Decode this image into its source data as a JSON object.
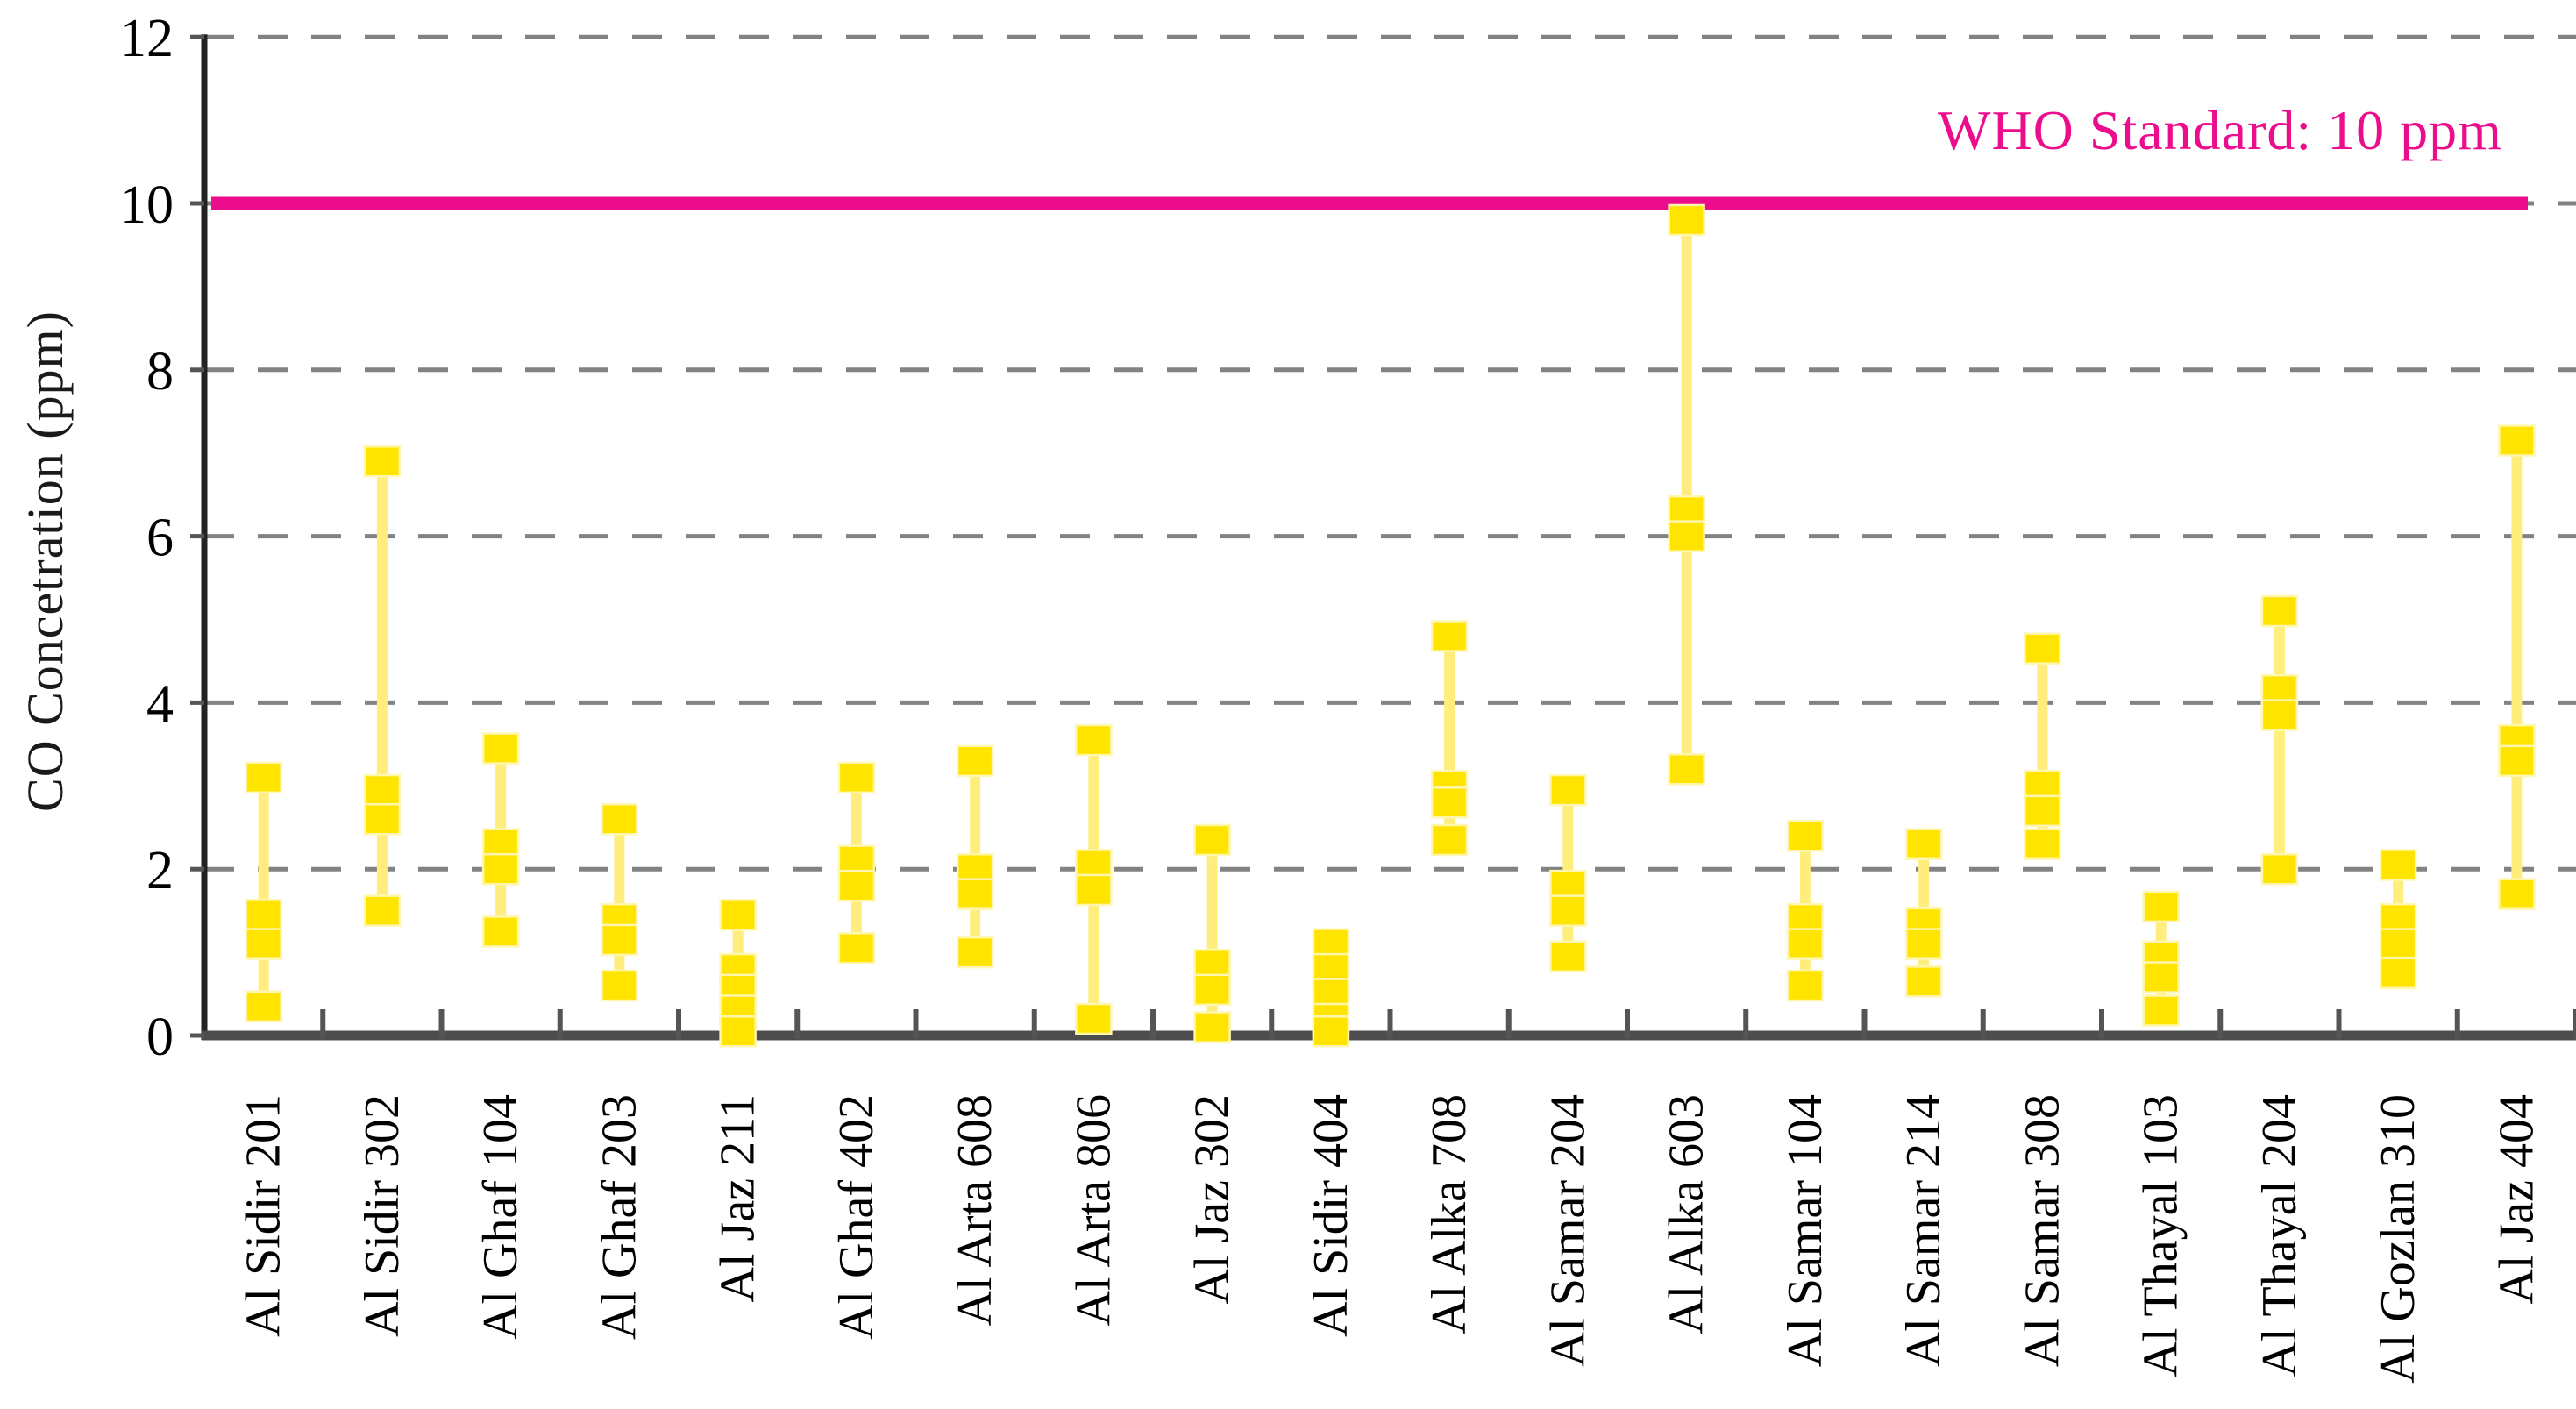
{
  "chart_data": {
    "type": "scatter",
    "title": "",
    "xlabel": "",
    "ylabel": "CO Concetration (ppm)",
    "ylim": [
      0,
      12
    ],
    "yticks": [
      0,
      2,
      4,
      6,
      8,
      10,
      12
    ],
    "grid": "horizontal-dashed",
    "legend_position": "none",
    "marker_shape": "square",
    "who_line": {
      "value": 10,
      "label": "WHO Standard: 10 ppm"
    },
    "categories": [
      "Al Sidir 201",
      "Al Sidir 302",
      "Al Ghaf 104",
      "Al Ghaf 203",
      "Al Jaz 211",
      "Al Ghaf 402",
      "Al Arta 608",
      "Al Arta 806",
      "Al Jaz 302",
      "Al Sidir 404",
      "Al Alka 708",
      "Al Samar 204",
      "Al Alka 603",
      "Al Samar 104",
      "Al Samar 214",
      "Al Samar 308",
      "Al Thayal 103",
      "Al Thayal 204",
      "Al Gozlan 310",
      "Al Jaz 404"
    ],
    "series": [
      {
        "name": "Al Sidir 201",
        "values": [
          3.1,
          1.45,
          1.1,
          0.35
        ]
      },
      {
        "name": "Al Sidir 302",
        "values": [
          6.9,
          2.95,
          2.6,
          1.5
        ]
      },
      {
        "name": "Al Ghaf 104",
        "values": [
          3.45,
          2.3,
          2.0,
          1.25
        ]
      },
      {
        "name": "Al Ghaf 203",
        "values": [
          2.6,
          1.4,
          1.15,
          0.6
        ]
      },
      {
        "name": "Al Jaz 211",
        "values": [
          1.45,
          0.8,
          0.55,
          0.3,
          0.05
        ]
      },
      {
        "name": "Al Ghaf 402",
        "values": [
          3.1,
          2.1,
          1.8,
          1.05
        ]
      },
      {
        "name": "Al Arta 608",
        "values": [
          3.3,
          2.0,
          1.7,
          1.0
        ]
      },
      {
        "name": "Al Arta 806",
        "values": [
          3.55,
          2.05,
          1.75,
          0.2
        ]
      },
      {
        "name": "Al Jaz 302",
        "values": [
          2.35,
          0.85,
          0.55,
          0.1
        ]
      },
      {
        "name": "Al Sidir 404",
        "values": [
          1.1,
          0.8,
          0.5,
          0.2,
          0.05
        ]
      },
      {
        "name": "Al Alka 708",
        "values": [
          4.8,
          3.0,
          2.8,
          2.35
        ]
      },
      {
        "name": "Al Samar 204",
        "values": [
          2.95,
          1.8,
          1.5,
          0.95
        ]
      },
      {
        "name": "Al Alka 603",
        "values": [
          9.8,
          6.3,
          6.0,
          3.2
        ]
      },
      {
        "name": "Al Samar 104",
        "values": [
          2.4,
          1.4,
          1.1,
          0.6
        ]
      },
      {
        "name": "Al Samar 214",
        "values": [
          2.3,
          1.35,
          1.1,
          0.65
        ]
      },
      {
        "name": "Al Samar 308",
        "values": [
          4.65,
          3.0,
          2.7,
          2.3
        ]
      },
      {
        "name": "Al Thayal 103",
        "values": [
          1.55,
          0.95,
          0.7,
          0.3
        ]
      },
      {
        "name": "Al Thayal 204",
        "values": [
          5.1,
          4.15,
          3.85,
          2.0
        ]
      },
      {
        "name": "Al Gozlan 310",
        "values": [
          2.05,
          1.4,
          1.1,
          0.75
        ]
      },
      {
        "name": "Al Jaz 404",
        "values": [
          7.15,
          3.55,
          3.3,
          1.7
        ]
      }
    ]
  },
  "colors": {
    "marker": "#FFE400",
    "marker_edge": "#FFF6B0",
    "range_line": "#FFEE7E",
    "who_line": "#EB0D8C",
    "who_label": "#EB0D8C",
    "gridline": "#828282",
    "axis": "#4D4D4D",
    "tick": "#555555",
    "text": "#000000"
  }
}
